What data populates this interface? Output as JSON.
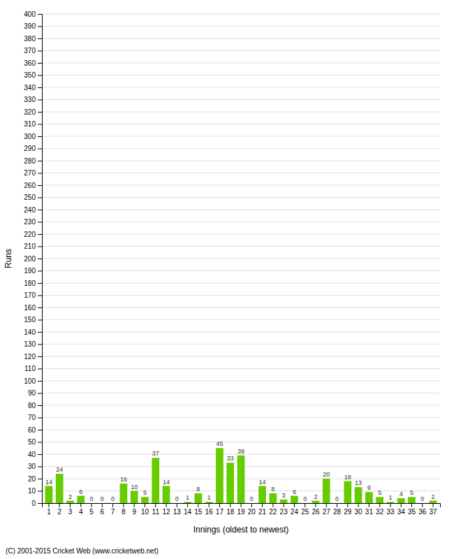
{
  "chart_data": {
    "type": "bar",
    "xlabel": "Innings (oldest to newest)",
    "ylabel": "Runs",
    "footer": "(C) 2001-2015 Cricket Web (www.cricketweb.net)",
    "categories": [
      "1",
      "2",
      "3",
      "4",
      "5",
      "6",
      "7",
      "8",
      "9",
      "10",
      "11",
      "12",
      "13",
      "14",
      "15",
      "16",
      "17",
      "18",
      "19",
      "20",
      "21",
      "22",
      "23",
      "24",
      "25",
      "26",
      "27",
      "28",
      "29",
      "30",
      "31",
      "32",
      "33",
      "34",
      "35",
      "36",
      "37"
    ],
    "values": [
      14,
      24,
      2,
      6,
      0,
      0,
      0,
      16,
      10,
      5,
      37,
      14,
      0,
      1,
      8,
      1,
      45,
      33,
      39,
      0,
      14,
      8,
      3,
      6,
      0,
      2,
      20,
      0,
      18,
      13,
      9,
      5,
      1,
      4,
      5,
      0,
      2
    ],
    "color": "#66cc00",
    "ylim": [
      0,
      400
    ],
    "yticks": [
      0,
      10,
      20,
      30,
      40,
      50,
      60,
      70,
      80,
      90,
      100,
      110,
      120,
      130,
      140,
      150,
      160,
      170,
      180,
      190,
      200,
      210,
      220,
      230,
      240,
      250,
      260,
      270,
      280,
      290,
      300,
      310,
      320,
      330,
      340,
      350,
      360,
      370,
      380,
      390,
      400
    ],
    "grid": true,
    "data_labels": true
  }
}
